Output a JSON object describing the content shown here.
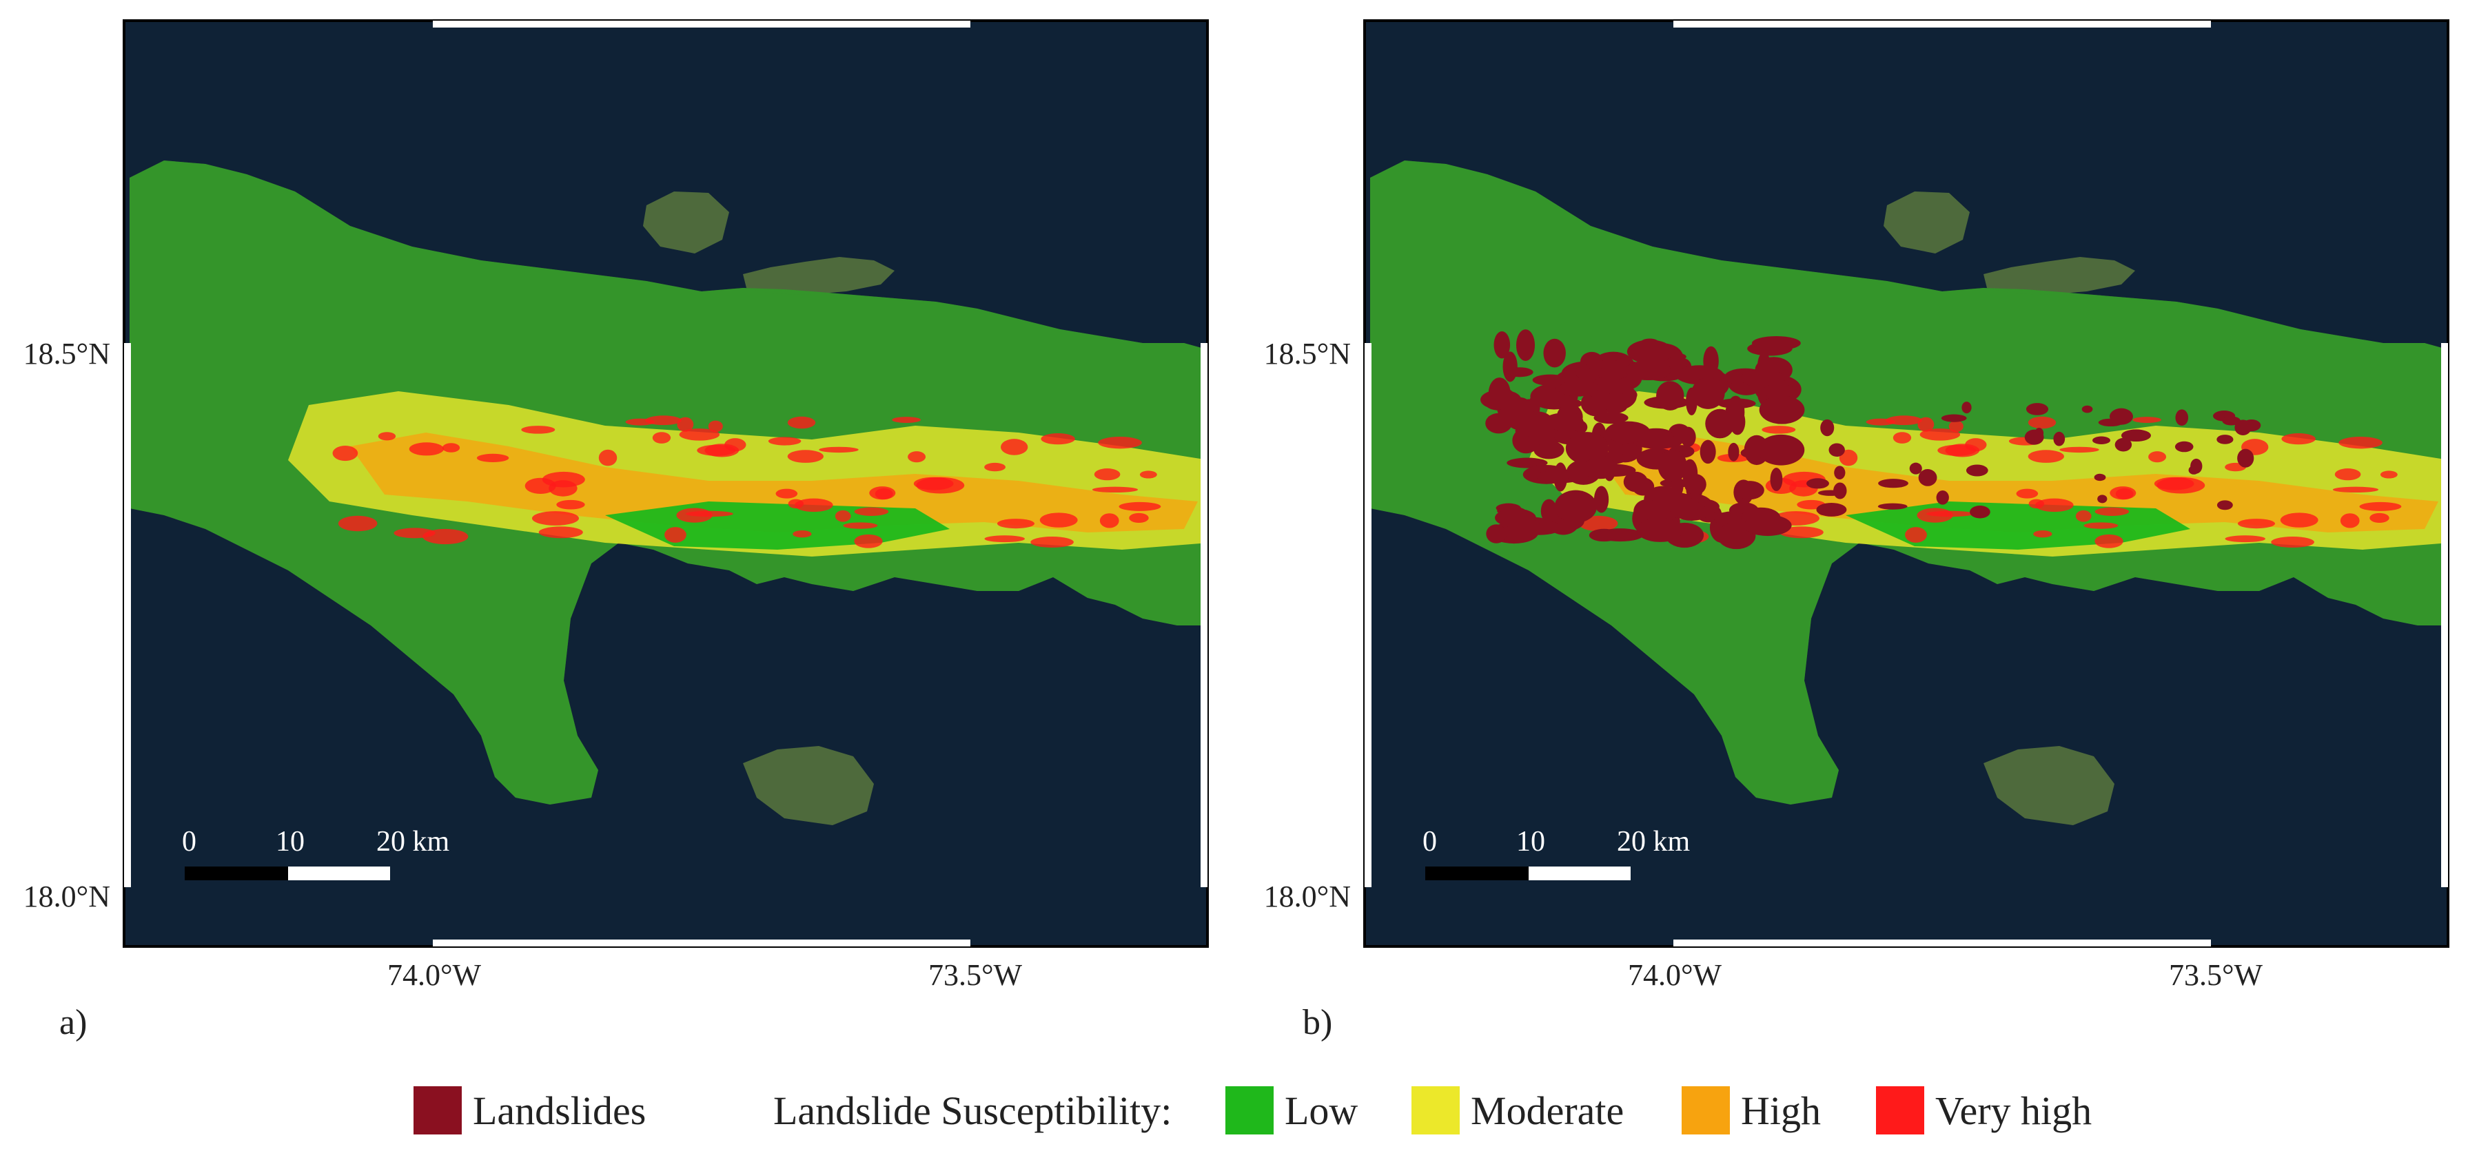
{
  "panels": [
    {
      "id": "a",
      "label": "a)",
      "show_landslides": false
    },
    {
      "id": "b",
      "label": "b)",
      "show_landslides": true
    }
  ],
  "axes": {
    "y_ticks": [
      "18.5°N",
      "18.0°N"
    ],
    "x_ticks": [
      "74.0°W",
      "73.5°W"
    ]
  },
  "scale_bar": {
    "labels": [
      "0",
      "10",
      "20 km"
    ]
  },
  "legend": {
    "landslides_label": "Landslides",
    "susceptibility_title": "Landslide Susceptibility:",
    "classes": [
      {
        "label": "Low",
        "color": "#1fb81b"
      },
      {
        "label": "Moderate",
        "color": "#ece82a"
      },
      {
        "label": "High",
        "color": "#f7a30f"
      },
      {
        "label": "Very high",
        "color": "#ff1a1a"
      }
    ],
    "landslides_color": "#8a1020"
  },
  "colors": {
    "sea": "#0f2236",
    "land": "#4e6a3c",
    "low": "#1fb81b",
    "moderate": "#ece82a",
    "high": "#f7a30f",
    "very_high": "#ff1a1a",
    "landslides": "#8a1020"
  }
}
